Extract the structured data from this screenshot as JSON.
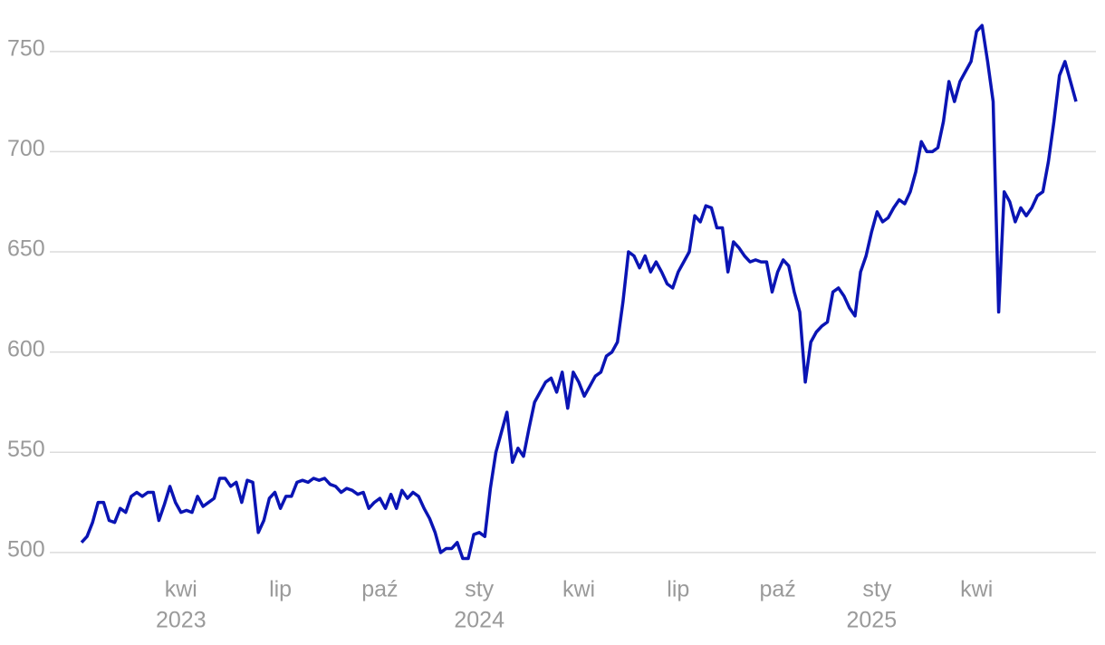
{
  "chart_data": {
    "type": "line",
    "categories": [
      null,
      null,
      null,
      null,
      null,
      null,
      null,
      null,
      null,
      null,
      null,
      null,
      null,
      null,
      null,
      null,
      null,
      null,
      "kwi",
      null,
      null,
      null,
      null,
      null,
      null,
      null,
      null,
      null,
      null,
      null,
      null,
      null,
      null,
      null,
      null,
      null,
      "lip",
      null,
      null,
      null,
      null,
      null,
      null,
      null,
      null,
      null,
      null,
      null,
      null,
      null,
      null,
      null,
      null,
      null,
      "paź",
      null,
      null,
      null,
      null,
      null,
      null,
      null,
      null,
      null,
      null,
      null,
      null,
      null,
      null,
      null,
      null,
      null,
      "sty",
      null,
      null,
      null,
      null,
      null,
      null,
      null,
      null,
      null,
      null,
      null,
      null,
      null,
      null,
      null,
      null,
      null,
      "kwi",
      null,
      null,
      null,
      null,
      null,
      null,
      null,
      null,
      null,
      null,
      null,
      null,
      null,
      null,
      null,
      null,
      null,
      "lip",
      null,
      null,
      null,
      null,
      null,
      null,
      null,
      null,
      null,
      null,
      null,
      null,
      null,
      null,
      null,
      null,
      null,
      "paź",
      null,
      null,
      null,
      null,
      null,
      null,
      null,
      null,
      null,
      null,
      null,
      null,
      null,
      null,
      null,
      null,
      null,
      "sty",
      null,
      null,
      null,
      null,
      null,
      null,
      null,
      null,
      null,
      null,
      null,
      null,
      null,
      null,
      null,
      null,
      null,
      "kwi",
      null,
      null,
      null,
      null,
      null,
      null,
      null,
      null,
      null,
      null,
      null,
      null,
      null,
      null,
      null,
      null,
      null,
      null
    ],
    "years": [
      null,
      null,
      null,
      null,
      null,
      null,
      null,
      null,
      null,
      null,
      null,
      null,
      null,
      null,
      null,
      null,
      null,
      null,
      "2023",
      null,
      null,
      null,
      null,
      null,
      null,
      null,
      null,
      null,
      null,
      null,
      null,
      null,
      null,
      null,
      null,
      null,
      null,
      null,
      null,
      null,
      null,
      null,
      null,
      null,
      null,
      null,
      null,
      null,
      null,
      null,
      null,
      null,
      null,
      null,
      null,
      null,
      null,
      null,
      null,
      null,
      null,
      null,
      null,
      null,
      null,
      null,
      null,
      null,
      null,
      null,
      null,
      null,
      "2024",
      null,
      null,
      null,
      null,
      null,
      null,
      null,
      null,
      null,
      null,
      null,
      null,
      null,
      null,
      null,
      null,
      null,
      null,
      null,
      null,
      null,
      null,
      null,
      null,
      null,
      null,
      null,
      null,
      null,
      null,
      null,
      null,
      null,
      null,
      null,
      null,
      null,
      null,
      null,
      null,
      null,
      null,
      null,
      null,
      null,
      null,
      null,
      null,
      null,
      null,
      null,
      null,
      null,
      null,
      null,
      null,
      null,
      null,
      null,
      null,
      null,
      null,
      null,
      null,
      null,
      null,
      null,
      null,
      null,
      null,
      "2025",
      null,
      null,
      null,
      null,
      null,
      null,
      null,
      null,
      null,
      null,
      null,
      null,
      null,
      null,
      null,
      null,
      null,
      null,
      null,
      null,
      null,
      null,
      null,
      null,
      null,
      null,
      null,
      null,
      null,
      null,
      null,
      null,
      null,
      null,
      null,
      null
    ],
    "values": [
      505,
      508,
      515,
      525,
      525,
      516,
      515,
      522,
      520,
      528,
      530,
      528,
      530,
      530,
      516,
      524,
      533,
      525,
      520,
      521,
      520,
      528,
      523,
      525,
      527,
      537,
      537,
      533,
      535,
      525,
      536,
      535,
      510,
      516,
      527,
      530,
      522,
      528,
      528,
      535,
      536,
      535,
      537,
      536,
      537,
      534,
      533,
      530,
      532,
      531,
      529,
      530,
      522,
      525,
      527,
      522,
      529,
      522,
      531,
      527,
      530,
      528,
      522,
      517,
      510,
      500,
      502,
      502,
      505,
      497,
      497,
      509,
      510,
      508,
      532,
      550,
      560,
      570,
      545,
      552,
      548,
      562,
      575,
      580,
      585,
      587,
      580,
      590,
      572,
      590,
      585,
      578,
      583,
      588,
      590,
      598,
      600,
      605,
      625,
      650,
      648,
      642,
      648,
      640,
      645,
      640,
      634,
      632,
      640,
      645,
      650,
      668,
      665,
      673,
      672,
      662,
      662,
      640,
      655,
      652,
      648,
      645,
      646,
      645,
      645,
      630,
      640,
      646,
      643,
      630,
      620,
      585,
      605,
      610,
      613,
      615,
      630,
      632,
      628,
      622,
      618,
      640,
      648,
      660,
      670,
      665,
      667,
      672,
      676,
      674,
      680,
      690,
      705,
      700,
      700,
      702,
      715,
      735,
      725,
      735,
      740,
      745,
      760,
      763,
      745,
      725,
      620,
      680,
      675,
      665,
      672,
      668,
      672,
      678,
      680,
      695,
      715,
      738,
      745,
      735,
      725
    ],
    "color": "#0a14b4",
    "ylim": [
      490,
      768
    ],
    "yticks": [
      500,
      550,
      600,
      650,
      700,
      750
    ],
    "grid": true
  }
}
